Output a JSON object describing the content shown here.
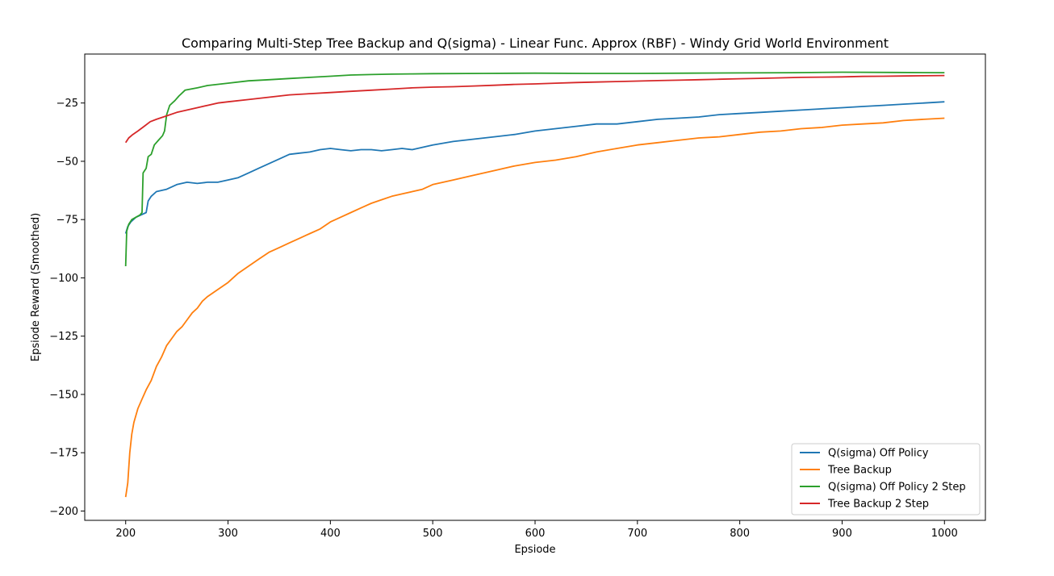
{
  "chart_data": {
    "type": "line",
    "title": "Comparing Multi-Step Tree Backup and Q(sigma) - Linear Func. Approx (RBF) - Windy Grid World Environment",
    "xlabel": "Epsiode",
    "ylabel": "Epsiode Reward (Smoothed)",
    "xlim": [
      160,
      1040
    ],
    "ylim": [
      -204,
      -4
    ],
    "x_ticks": [
      200,
      300,
      400,
      500,
      600,
      700,
      800,
      900,
      1000
    ],
    "x_tick_labels": [
      "200",
      "300",
      "400",
      "500",
      "600",
      "700",
      "800",
      "900",
      "1000"
    ],
    "y_ticks": [
      -200,
      -175,
      -150,
      -125,
      -100,
      -75,
      -50,
      -25
    ],
    "y_tick_labels": [
      "−200",
      "−175",
      "−150",
      "−125",
      "−100",
      "−75",
      "−50",
      "−25"
    ],
    "grid": false,
    "legend_position": "bottom-right",
    "series": [
      {
        "name": "Q(sigma) Off Policy",
        "color": "#1f77b4",
        "points": [
          [
            200,
            -81
          ],
          [
            202,
            -78
          ],
          [
            205,
            -76
          ],
          [
            210,
            -74
          ],
          [
            215,
            -73
          ],
          [
            220,
            -72
          ],
          [
            222,
            -67
          ],
          [
            225,
            -65
          ],
          [
            230,
            -63
          ],
          [
            240,
            -62
          ],
          [
            250,
            -60
          ],
          [
            260,
            -59
          ],
          [
            270,
            -59.5
          ],
          [
            280,
            -59
          ],
          [
            290,
            -59
          ],
          [
            300,
            -58
          ],
          [
            310,
            -57
          ],
          [
            320,
            -55
          ],
          [
            330,
            -53
          ],
          [
            340,
            -51
          ],
          [
            350,
            -49
          ],
          [
            360,
            -47
          ],
          [
            370,
            -46.5
          ],
          [
            380,
            -46
          ],
          [
            390,
            -45
          ],
          [
            400,
            -44.5
          ],
          [
            410,
            -45
          ],
          [
            420,
            -45.5
          ],
          [
            430,
            -45
          ],
          [
            440,
            -45
          ],
          [
            450,
            -45.5
          ],
          [
            460,
            -45
          ],
          [
            470,
            -44.5
          ],
          [
            480,
            -45
          ],
          [
            490,
            -44
          ],
          [
            500,
            -43
          ],
          [
            520,
            -41.5
          ],
          [
            540,
            -40.5
          ],
          [
            560,
            -39.5
          ],
          [
            580,
            -38.5
          ],
          [
            600,
            -37
          ],
          [
            620,
            -36
          ],
          [
            640,
            -35
          ],
          [
            660,
            -34
          ],
          [
            680,
            -34
          ],
          [
            700,
            -33
          ],
          [
            720,
            -32
          ],
          [
            740,
            -31.5
          ],
          [
            760,
            -31
          ],
          [
            780,
            -30
          ],
          [
            800,
            -29.5
          ],
          [
            820,
            -29
          ],
          [
            840,
            -28.5
          ],
          [
            860,
            -28
          ],
          [
            880,
            -27.5
          ],
          [
            900,
            -27
          ],
          [
            920,
            -26.5
          ],
          [
            940,
            -26
          ],
          [
            960,
            -25.5
          ],
          [
            980,
            -25
          ],
          [
            1000,
            -24.5
          ]
        ]
      },
      {
        "name": "Tree Backup",
        "color": "#ff7f0e",
        "points": [
          [
            200,
            -194
          ],
          [
            202,
            -188
          ],
          [
            204,
            -175
          ],
          [
            206,
            -167
          ],
          [
            208,
            -162
          ],
          [
            212,
            -156
          ],
          [
            216,
            -152
          ],
          [
            220,
            -148
          ],
          [
            225,
            -144
          ],
          [
            230,
            -138
          ],
          [
            235,
            -134
          ],
          [
            240,
            -129
          ],
          [
            245,
            -126
          ],
          [
            250,
            -123
          ],
          [
            255,
            -121
          ],
          [
            260,
            -118
          ],
          [
            265,
            -115
          ],
          [
            270,
            -113
          ],
          [
            275,
            -110
          ],
          [
            280,
            -108
          ],
          [
            290,
            -105
          ],
          [
            300,
            -102
          ],
          [
            310,
            -98
          ],
          [
            320,
            -95
          ],
          [
            330,
            -92
          ],
          [
            340,
            -89
          ],
          [
            350,
            -87
          ],
          [
            360,
            -85
          ],
          [
            370,
            -83
          ],
          [
            380,
            -81
          ],
          [
            390,
            -79
          ],
          [
            400,
            -76
          ],
          [
            410,
            -74
          ],
          [
            420,
            -72
          ],
          [
            430,
            -70
          ],
          [
            440,
            -68
          ],
          [
            450,
            -66.5
          ],
          [
            460,
            -65
          ],
          [
            470,
            -64
          ],
          [
            480,
            -63
          ],
          [
            490,
            -62
          ],
          [
            500,
            -60
          ],
          [
            520,
            -58
          ],
          [
            540,
            -56
          ],
          [
            560,
            -54
          ],
          [
            580,
            -52
          ],
          [
            600,
            -50.5
          ],
          [
            620,
            -49.5
          ],
          [
            640,
            -48
          ],
          [
            660,
            -46
          ],
          [
            680,
            -44.5
          ],
          [
            700,
            -43
          ],
          [
            720,
            -42
          ],
          [
            740,
            -41
          ],
          [
            760,
            -40
          ],
          [
            780,
            -39.5
          ],
          [
            800,
            -38.5
          ],
          [
            820,
            -37.5
          ],
          [
            840,
            -37
          ],
          [
            860,
            -36
          ],
          [
            880,
            -35.5
          ],
          [
            900,
            -34.5
          ],
          [
            920,
            -34
          ],
          [
            940,
            -33.5
          ],
          [
            960,
            -32.5
          ],
          [
            980,
            -32
          ],
          [
            1000,
            -31.5
          ]
        ]
      },
      {
        "name": "Q(sigma) Off Policy 2 Step",
        "color": "#2ca02c",
        "points": [
          [
            200,
            -95
          ],
          [
            201,
            -80
          ],
          [
            203,
            -77
          ],
          [
            206,
            -75
          ],
          [
            210,
            -74
          ],
          [
            214,
            -73
          ],
          [
            216,
            -72
          ],
          [
            217,
            -55
          ],
          [
            220,
            -53
          ],
          [
            222,
            -48
          ],
          [
            225,
            -47
          ],
          [
            228,
            -43
          ],
          [
            232,
            -41
          ],
          [
            236,
            -39
          ],
          [
            238,
            -37
          ],
          [
            240,
            -30
          ],
          [
            243,
            -26
          ],
          [
            248,
            -24
          ],
          [
            252,
            -22
          ],
          [
            258,
            -19.5
          ],
          [
            270,
            -18.5
          ],
          [
            280,
            -17.5
          ],
          [
            300,
            -16.5
          ],
          [
            320,
            -15.5
          ],
          [
            340,
            -15
          ],
          [
            360,
            -14.5
          ],
          [
            380,
            -14
          ],
          [
            400,
            -13.5
          ],
          [
            420,
            -13
          ],
          [
            440,
            -12.8
          ],
          [
            460,
            -12.6
          ],
          [
            480,
            -12.5
          ],
          [
            500,
            -12.4
          ],
          [
            550,
            -12.3
          ],
          [
            600,
            -12.2
          ],
          [
            650,
            -12.3
          ],
          [
            700,
            -12.3
          ],
          [
            750,
            -12.2
          ],
          [
            800,
            -12.1
          ],
          [
            850,
            -12
          ],
          [
            900,
            -11.8
          ],
          [
            950,
            -11.9
          ],
          [
            1000,
            -12
          ]
        ]
      },
      {
        "name": "Tree Backup 2 Step",
        "color": "#d62728",
        "points": [
          [
            200,
            -42
          ],
          [
            203,
            -40
          ],
          [
            207,
            -38.5
          ],
          [
            212,
            -37
          ],
          [
            218,
            -35
          ],
          [
            224,
            -33
          ],
          [
            230,
            -32
          ],
          [
            240,
            -30.5
          ],
          [
            250,
            -29
          ],
          [
            260,
            -28
          ],
          [
            270,
            -27
          ],
          [
            280,
            -26
          ],
          [
            290,
            -25
          ],
          [
            300,
            -24.5
          ],
          [
            320,
            -23.5
          ],
          [
            340,
            -22.5
          ],
          [
            360,
            -21.5
          ],
          [
            380,
            -21
          ],
          [
            400,
            -20.5
          ],
          [
            420,
            -20
          ],
          [
            440,
            -19.5
          ],
          [
            460,
            -19
          ],
          [
            480,
            -18.5
          ],
          [
            500,
            -18.2
          ],
          [
            520,
            -18
          ],
          [
            540,
            -17.7
          ],
          [
            560,
            -17.4
          ],
          [
            580,
            -17
          ],
          [
            600,
            -16.8
          ],
          [
            620,
            -16.5
          ],
          [
            640,
            -16.2
          ],
          [
            660,
            -16
          ],
          [
            680,
            -15.8
          ],
          [
            700,
            -15.6
          ],
          [
            720,
            -15.4
          ],
          [
            740,
            -15.2
          ],
          [
            760,
            -15
          ],
          [
            780,
            -14.8
          ],
          [
            800,
            -14.6
          ],
          [
            820,
            -14.4
          ],
          [
            840,
            -14.2
          ],
          [
            860,
            -14
          ],
          [
            880,
            -13.9
          ],
          [
            900,
            -13.8
          ],
          [
            920,
            -13.6
          ],
          [
            940,
            -13.5
          ],
          [
            960,
            -13.4
          ],
          [
            980,
            -13.3
          ],
          [
            1000,
            -13.2
          ]
        ]
      }
    ]
  }
}
